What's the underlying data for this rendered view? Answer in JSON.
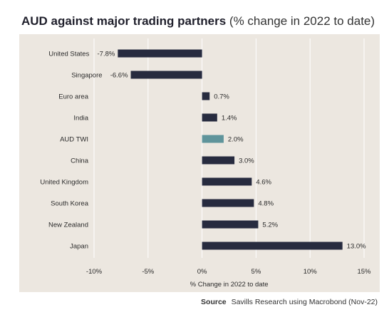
{
  "title": {
    "bold": "AUD against major trading partners",
    "light": "(% change in 2022 to date)"
  },
  "source": {
    "label": "Source",
    "text": "Savills Research using Macrobond (Nov-22)"
  },
  "chart_data": {
    "type": "bar",
    "orientation": "horizontal",
    "categories": [
      "United States",
      "Singapore",
      "Euro area",
      "India",
      "AUD TWI",
      "China",
      "United Kingdom",
      "South Korea",
      "New Zealand",
      "Japan"
    ],
    "values": [
      -7.8,
      -6.6,
      0.7,
      1.4,
      2.0,
      3.0,
      4.6,
      4.8,
      5.2,
      13.0
    ],
    "value_labels": [
      "-7.8%",
      "-6.6%",
      "0.7%",
      "1.4%",
      "2.0%",
      "3.0%",
      "4.6%",
      "4.8%",
      "5.2%",
      "13.0%"
    ],
    "xlabel": "% Change in 2022 to date",
    "ylabel": "",
    "xlim": [
      -10,
      15
    ],
    "xticks": [
      -10,
      -5,
      0,
      5,
      10,
      15
    ],
    "xtick_labels": [
      "-10%",
      "-5%",
      "0%",
      "5%",
      "10%",
      "15%"
    ],
    "grid": "vertical",
    "colors": {
      "bar": "#272b3f",
      "highlight": "#5f949b",
      "grid": "#ffffff",
      "text": "#2b2b2b"
    },
    "highlight_category": "AUD TWI"
  }
}
